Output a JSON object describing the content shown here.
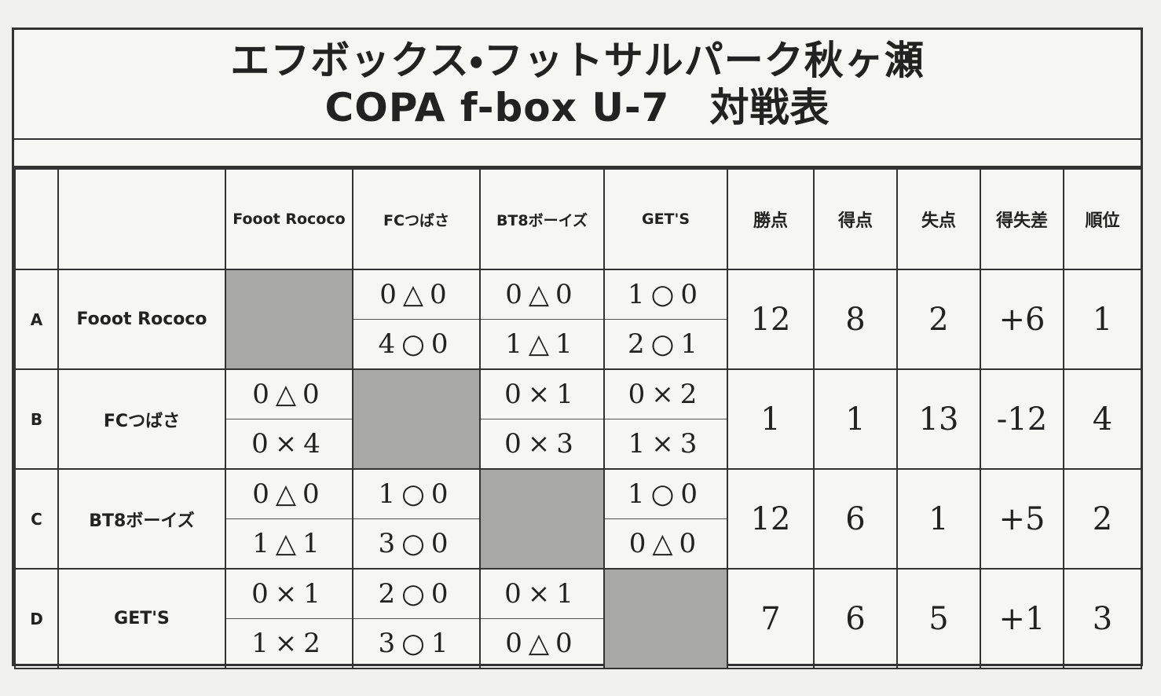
{
  "header": {
    "title": [
      "エフボックス・フットサルパーク秋ヶ瀬",
      "COPA f-box U-7　対戦表"
    ]
  },
  "table": {
    "team_headers": [
      "Fooot Rococo",
      "FCつばさ",
      "BT8ボーイズ",
      "GET'S"
    ],
    "stat_headers": [
      "勝点",
      "得点",
      "失点",
      "得失差",
      "順位"
    ],
    "rows": [
      {
        "key": "A",
        "team": "Fooot Rococo",
        "results": [
          null,
          [
            "0△0",
            "4○0"
          ],
          [
            "0△0",
            "1△1"
          ],
          [
            "1○0",
            "2○1"
          ]
        ],
        "stats": [
          "12",
          "8",
          "2",
          "+6",
          "1"
        ]
      },
      {
        "key": "B",
        "team": "FCつばさ",
        "results": [
          [
            "0△0",
            "0×4"
          ],
          null,
          [
            "0×1",
            "0×3"
          ],
          [
            "0×2",
            "1×3"
          ]
        ],
        "stats": [
          "1",
          "1",
          "13",
          "-12",
          "4"
        ]
      },
      {
        "key": "C",
        "team": "BT8ボーイズ",
        "results": [
          [
            "0△0",
            "1△1"
          ],
          [
            "1○0",
            "3○0"
          ],
          null,
          [
            "1○0",
            "0△0"
          ]
        ],
        "stats": [
          "12",
          "6",
          "1",
          "+5",
          "2"
        ]
      },
      {
        "key": "D",
        "team": "GET'S",
        "results": [
          [
            "0×1",
            "1×2"
          ],
          [
            "2○0",
            "3○1"
          ],
          [
            "0×1",
            "0△0"
          ],
          null
        ],
        "stats": [
          "7",
          "6",
          "5",
          "+1",
          "3"
        ]
      }
    ]
  }
}
